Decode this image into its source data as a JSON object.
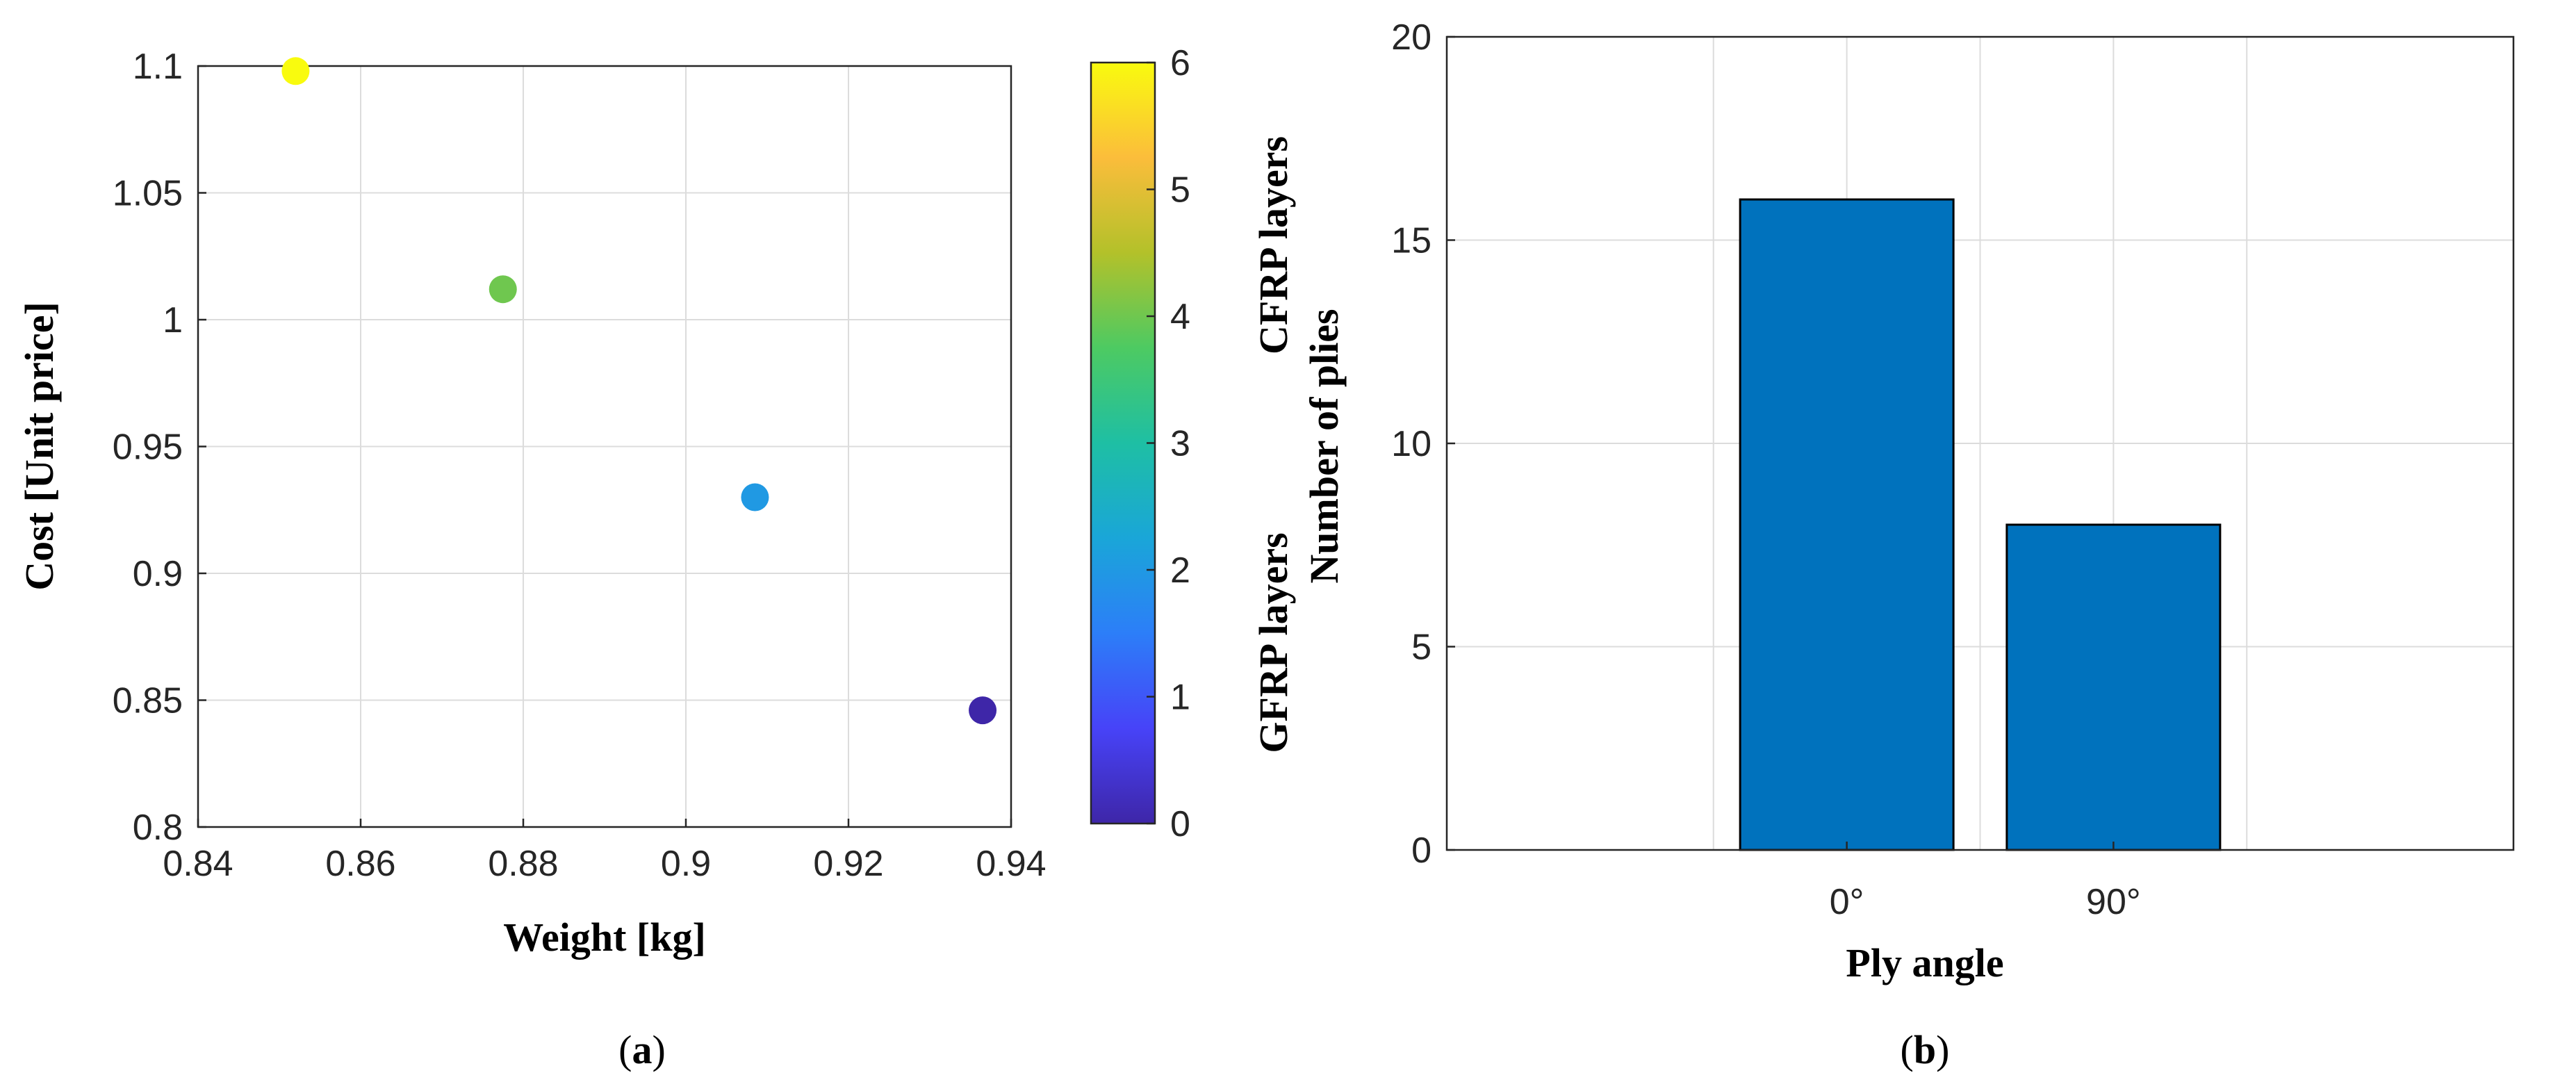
{
  "panels": {
    "a": {
      "label_open": "(",
      "label_letter": "a",
      "label_close": ")"
    },
    "b": {
      "label_open": "(",
      "label_letter": "b",
      "label_close": ")"
    }
  },
  "colormap": {
    "name": "parula",
    "stops": [
      "#3e26a8",
      "#4743f8",
      "#2c7ef8",
      "#1aa6d8",
      "#1ebfa4",
      "#4dca62",
      "#b3c12a",
      "#fbbd3b",
      "#f9fb0e"
    ]
  },
  "colorbar": {
    "range": [
      0,
      6
    ],
    "ticks": [
      0,
      1,
      2,
      3,
      4,
      5,
      6
    ],
    "label_top": "CFRP layers",
    "label_bottom": "GFRP layers"
  },
  "chart_data": [
    {
      "panel": "a",
      "type": "scatter",
      "title": "",
      "xlabel": "Weight [kg]",
      "ylabel": "Cost [Unit price]",
      "xlim": [
        0.84,
        0.94
      ],
      "ylim": [
        0.8,
        1.1
      ],
      "xticks": [
        0.84,
        0.86,
        0.88,
        0.9,
        0.92,
        0.94
      ],
      "xtick_labels": [
        "0.84",
        "0.86",
        "0.88",
        "0.9",
        "0.92",
        "0.94"
      ],
      "yticks": [
        0.8,
        0.85,
        0.9,
        0.95,
        1.0,
        1.05,
        1.1
      ],
      "ytick_labels": [
        "0.8",
        "0.85",
        "0.9",
        "0.95",
        "1",
        "1.05",
        "1.1"
      ],
      "grid": true,
      "points": [
        {
          "x": 0.852,
          "y": 1.098,
          "c": 6
        },
        {
          "x": 0.8775,
          "y": 1.012,
          "c": 4
        },
        {
          "x": 0.9085,
          "y": 0.93,
          "c": 2
        },
        {
          "x": 0.9365,
          "y": 0.846,
          "c": 0
        }
      ]
    },
    {
      "panel": "b",
      "type": "bar",
      "title": "",
      "xlabel": "Ply angle",
      "ylabel": "Number of plies",
      "categories": [
        "0°",
        "90°"
      ],
      "values": [
        16,
        8
      ],
      "ylim": [
        0,
        20
      ],
      "yticks": [
        0,
        5,
        10,
        15,
        20
      ],
      "ytick_labels": [
        "0",
        "5",
        "10",
        "15",
        "20"
      ],
      "grid": true,
      "bar_color": "#0072bd"
    }
  ]
}
